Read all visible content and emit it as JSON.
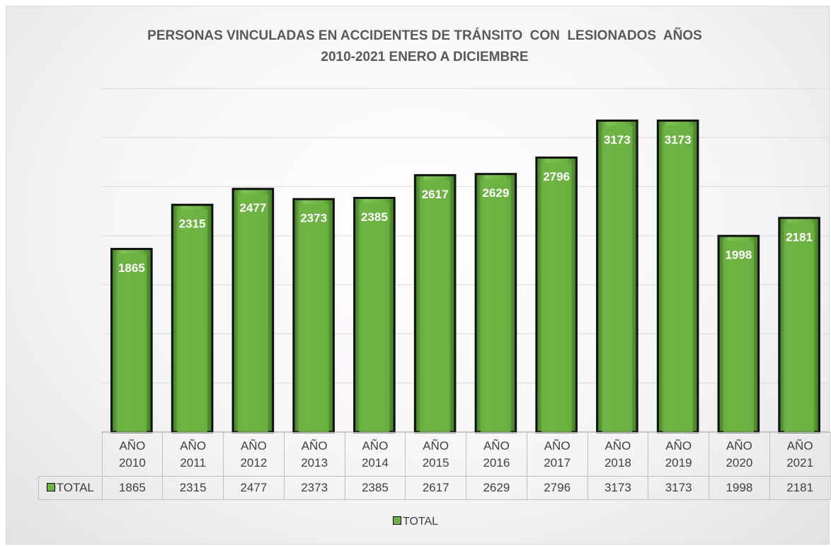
{
  "chart_data": {
    "type": "bar",
    "title": "PERSONAS VINCULADAS EN ACCIDENTES DE TRÁNSITO  CON  LESIONADOS  AÑOS\n2010-2021 ENERO A DICIEMBRE",
    "categories": [
      "AÑO\n2010",
      "AÑO\n2011",
      "AÑO\n2012",
      "AÑO\n2013",
      "AÑO\n2014",
      "AÑO\n2015",
      "AÑO\n2016",
      "AÑO\n2017",
      "AÑO\n2018",
      "AÑO\n2019",
      "AÑO\n2020",
      "AÑO\n2021"
    ],
    "series": [
      {
        "name": "TOTAL",
        "color": "#6cb142",
        "values": [
          1865,
          2315,
          2477,
          2373,
          2385,
          2617,
          2629,
          2796,
          3173,
          3173,
          1998,
          2181
        ]
      }
    ],
    "ylim": [
      0,
      3500
    ],
    "yticks": [
      0,
      500,
      1000,
      1500,
      2000,
      2500,
      3000,
      3500
    ],
    "grid": true,
    "data_labels": true,
    "legend": "bottom",
    "data_table": true
  }
}
